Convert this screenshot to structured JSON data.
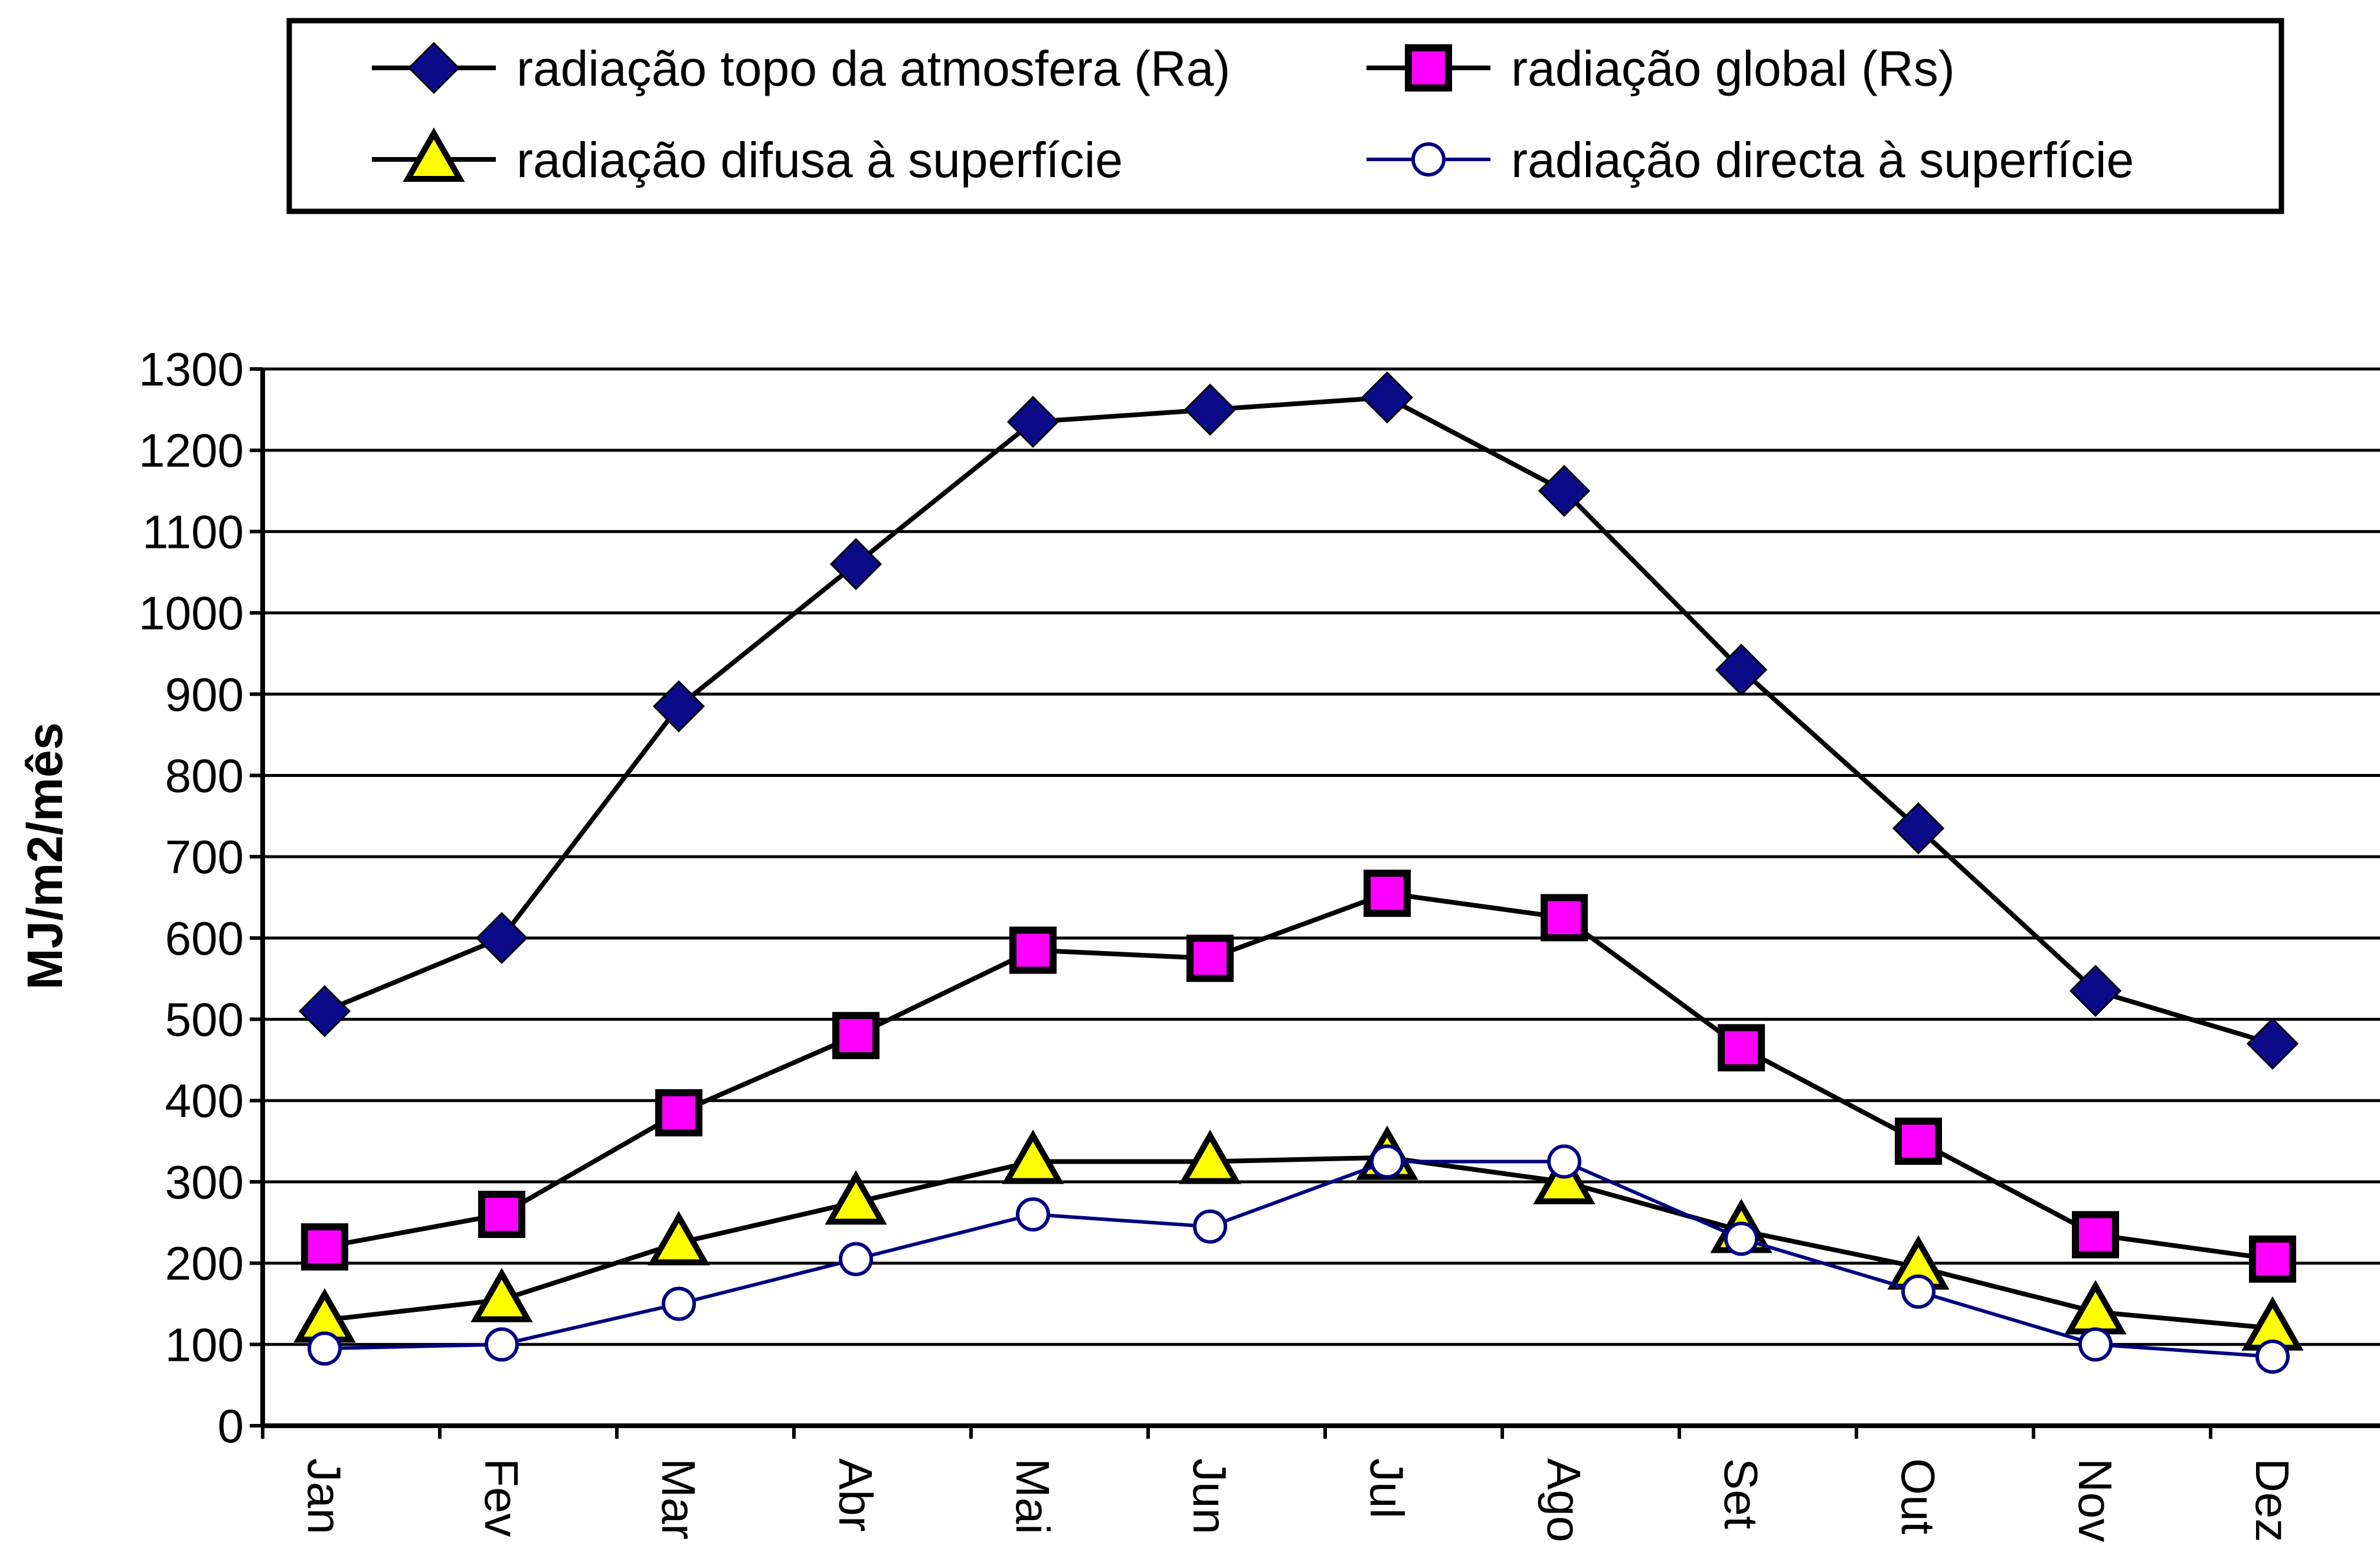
{
  "chart_data": {
    "type": "line",
    "title": "",
    "xlabel": "",
    "ylabel": "MJ/m2/mês",
    "ylim": [
      0,
      1300
    ],
    "yticks": [
      0,
      100,
      200,
      300,
      400,
      500,
      600,
      700,
      800,
      900,
      1000,
      1100,
      1200,
      1300
    ],
    "grid": "horizontal",
    "legend_position": "top",
    "categories": [
      "Jan",
      "Fev",
      "Mar",
      "Abr",
      "Mai",
      "Jun",
      "Jul",
      "Ago",
      "Set",
      "Out",
      "Nov",
      "Dez"
    ],
    "series": [
      {
        "name": "radiação topo da atmosfera (Ra)",
        "marker": "diamond",
        "line_color": "#000000",
        "marker_fill": "#0b0b8a",
        "values": [
          510,
          600,
          885,
          1060,
          1235,
          1250,
          1265,
          1150,
          930,
          735,
          535,
          470
        ]
      },
      {
        "name": "radiação global (Rs)",
        "marker": "square",
        "line_color": "#000000",
        "marker_fill": "#ff00ff",
        "values": [
          220,
          260,
          385,
          480,
          585,
          575,
          655,
          625,
          465,
          350,
          235,
          205
        ]
      },
      {
        "name": "radiação difusa à superfície",
        "marker": "triangle",
        "line_color": "#000000",
        "marker_fill": "#ffff00",
        "values": [
          130,
          155,
          225,
          275,
          325,
          325,
          330,
          300,
          240,
          195,
          140,
          120
        ]
      },
      {
        "name": "radiação directa à superfície",
        "marker": "circle",
        "line_color": "#000080",
        "marker_fill": "#ffffff",
        "values": [
          95,
          100,
          150,
          205,
          260,
          245,
          325,
          325,
          230,
          165,
          100,
          85
        ]
      }
    ]
  }
}
